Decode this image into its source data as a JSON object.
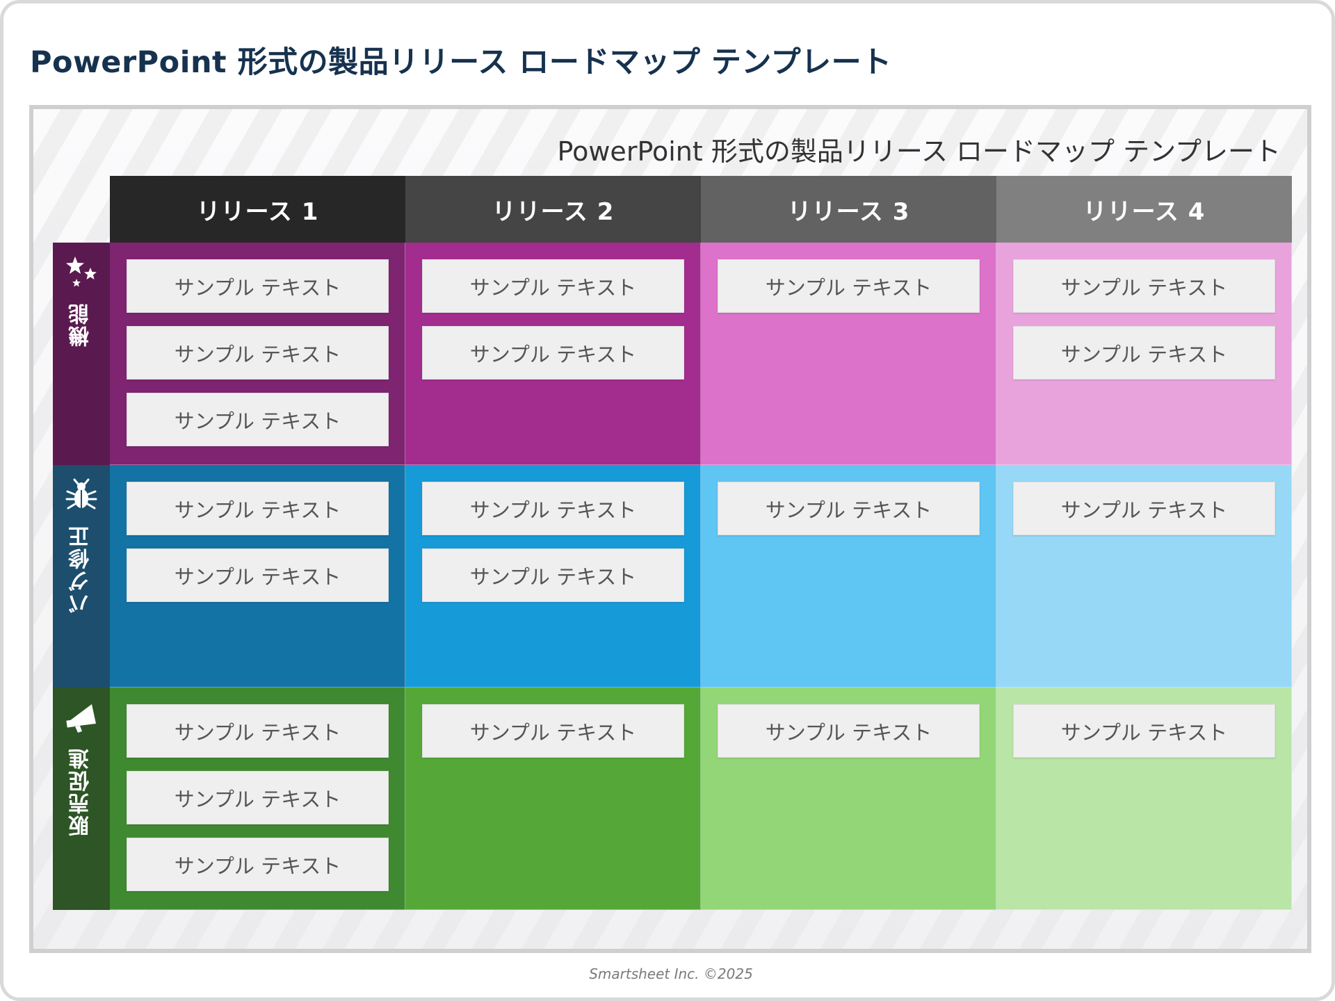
{
  "page": {
    "title": "PowerPoint 形式の製品リリース ロードマップ テンプレート",
    "footer": "Smartsheet Inc. ©2025"
  },
  "slide": {
    "title": "PowerPoint 形式の製品リリース ロードマップ テンプレート"
  },
  "releases": [
    {
      "label": "リリース 1",
      "color": "#272727"
    },
    {
      "label": "リリース 2",
      "color": "#454545"
    },
    {
      "label": "リリース 3",
      "color": "#626262"
    },
    {
      "label": "リリース 4",
      "color": "#808080"
    }
  ],
  "rows": [
    {
      "label": "機能",
      "icon": "stars-icon",
      "label_color": "#5a1a4f",
      "cell_colors": [
        "#7e2471",
        "#a32c8f",
        "#dc72ca",
        "#e8a3dc"
      ],
      "cells": [
        [
          "サンプル テキスト",
          "サンプル テキスト",
          "サンプル テキスト"
        ],
        [
          "サンプル テキスト",
          "サンプル テキスト"
        ],
        [
          "サンプル テキスト"
        ],
        [
          "サンプル テキスト",
          "サンプル テキスト"
        ]
      ]
    },
    {
      "label": "バグ修正",
      "icon": "bug-icon",
      "label_color": "#1d4e6d",
      "cell_colors": [
        "#1273a4",
        "#169ad8",
        "#5fc5f2",
        "#97d8f6"
      ],
      "cells": [
        [
          "サンプル テキスト",
          "サンプル テキスト"
        ],
        [
          "サンプル テキスト",
          "サンプル テキスト"
        ],
        [
          "サンプル テキスト"
        ],
        [
          "サンプル テキスト"
        ]
      ]
    },
    {
      "label": "販売促進",
      "icon": "megaphone-icon",
      "label_color": "#2d5525",
      "cell_colors": [
        "#3f8a30",
        "#55a838",
        "#93d678",
        "#b9e5a7"
      ],
      "cells": [
        [
          "サンプル テキスト",
          "サンプル テキスト",
          "サンプル テキスト"
        ],
        [
          "サンプル テキスト"
        ],
        [
          "サンプル テキスト"
        ],
        [
          "サンプル テキスト"
        ]
      ]
    }
  ]
}
